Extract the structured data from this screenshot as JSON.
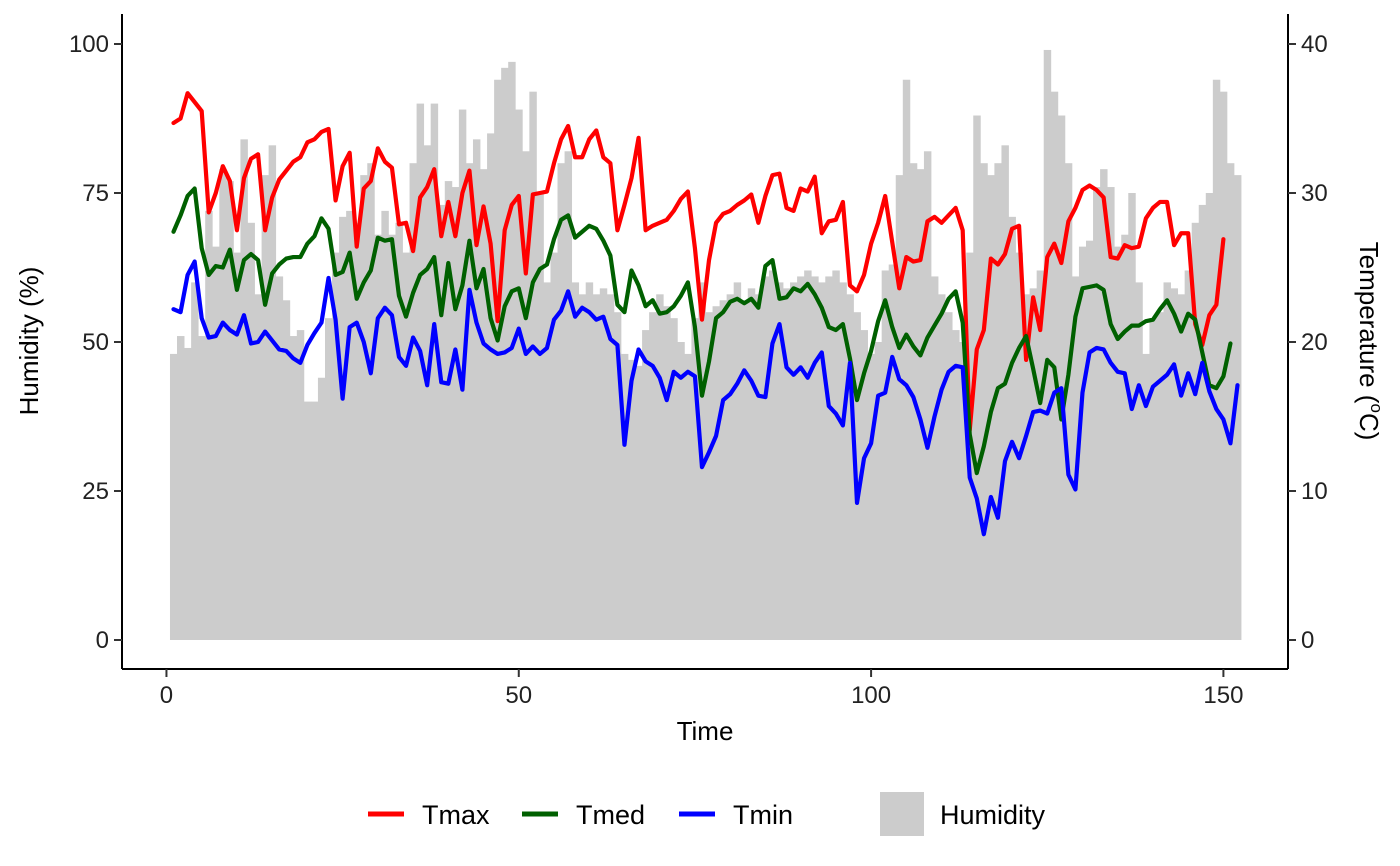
{
  "chart_data": {
    "type": "bar+line",
    "xlabel": "Time",
    "ylabel_left": "Humidity (%)",
    "ylabel_right_main": "Temperature (",
    "ylabel_right_sup": "o",
    "ylabel_right_unit": "C)",
    "xlim": [
      1,
      152
    ],
    "x_ticks": [
      0,
      50,
      100,
      150
    ],
    "x_tick_labels": [
      "0",
      "50",
      "100",
      "150"
    ],
    "ylim_left": [
      0,
      100
    ],
    "y_left_ticks": [
      0,
      25,
      50,
      75,
      100
    ],
    "y_left_tick_labels": [
      "0",
      "25",
      "50",
      "75",
      "100"
    ],
    "ylim_right": [
      0,
      40
    ],
    "y_right_ticks": [
      0,
      10,
      20,
      30,
      40
    ],
    "y_right_tick_labels": [
      "0",
      "10",
      "20",
      "30",
      "40"
    ],
    "grid": false,
    "legend_position": "bottom",
    "humidity": {
      "name": "Humidity",
      "color": "#cccccc",
      "values": [
        48,
        51,
        49,
        60,
        51,
        72,
        66,
        79,
        77,
        65,
        84,
        70,
        58,
        78,
        83,
        61,
        57,
        51,
        52,
        40,
        40,
        44,
        54,
        65,
        71,
        72,
        70,
        78,
        80,
        68,
        72,
        68,
        70,
        65,
        80,
        90,
        83,
        90,
        73,
        77,
        76,
        89,
        80,
        84,
        79,
        85,
        94,
        96,
        97,
        89,
        82,
        92,
        75,
        60,
        65,
        80,
        82,
        60,
        58,
        60,
        58,
        59,
        58,
        55,
        48,
        47,
        46,
        52,
        55,
        58,
        56,
        54,
        50,
        48,
        54,
        60,
        55,
        56,
        57,
        58,
        60,
        57,
        59,
        58,
        61,
        62,
        60,
        59,
        60,
        61,
        62,
        61,
        60,
        61,
        62,
        60,
        58,
        55,
        52,
        48,
        50,
        62,
        63,
        78,
        94,
        80,
        79,
        82,
        61,
        58,
        55,
        52,
        50,
        65,
        88,
        80,
        78,
        80,
        83,
        71,
        65,
        58,
        59,
        62,
        99,
        92,
        88,
        80,
        61,
        66,
        67,
        76,
        79,
        76,
        66,
        68,
        75,
        60,
        48,
        54,
        55,
        60,
        59,
        58,
        62,
        70,
        73,
        75,
        94,
        92,
        80,
        78
      ]
    },
    "series": [
      {
        "name": "Tmax",
        "color": "#ff0000",
        "values": [
          34.7,
          35,
          36.7,
          36.1,
          35.5,
          28.7,
          30,
          31.8,
          30.8,
          27.5,
          31,
          32.3,
          32.6,
          27.5,
          29.7,
          30.9,
          31.5,
          32.1,
          32.4,
          33.4,
          33.6,
          34.1,
          34.3,
          29.5,
          31.8,
          32.7,
          26.4,
          30.3,
          30.8,
          33,
          32.1,
          31.7,
          27.9,
          28,
          26.1,
          29.7,
          30.4,
          31.6,
          27.1,
          29.4,
          27.1,
          30,
          31.5,
          26.5,
          29.1,
          26.6,
          21.4,
          27.5,
          29.2,
          29.8,
          24.6,
          29.9,
          30,
          30.1,
          32,
          33.6,
          34.5,
          32.4,
          32.4,
          33.6,
          34.2,
          32.4,
          32,
          27.5,
          29.2,
          31,
          33.7,
          27.5,
          27.8,
          28,
          28.2,
          28.8,
          29.6,
          30.1,
          26.3,
          21.5,
          25.5,
          28,
          28.6,
          28.8,
          29.2,
          29.5,
          29.9,
          28,
          29.8,
          31.2,
          31.3,
          29,
          28.8,
          30.3,
          30.1,
          31.1,
          27.3,
          28.1,
          28.2,
          29.4,
          23.8,
          23.4,
          24.5,
          26.6,
          28,
          29.8,
          26.7,
          23.6,
          25.7,
          25.4,
          25.5,
          28.1,
          28.4,
          28,
          28.5,
          29,
          27.5,
          14.1,
          19.5,
          20.8,
          25.6,
          25.2,
          25.9,
          27.6,
          27.8,
          18.8,
          23,
          20.8,
          25.7,
          26.6,
          25.3,
          28.1,
          29,
          30.2,
          30.5,
          30.2,
          29.7,
          25.7,
          25.6,
          26.5,
          26.3,
          26.4,
          28.3,
          29,
          29.4,
          29.4,
          26.5,
          27.3,
          27.3,
          21.2,
          19.8,
          21.8,
          22.5,
          26.9
        ]
      },
      {
        "name": "Tmed",
        "color": "#006000",
        "values": [
          27.4,
          28.5,
          29.8,
          30.3,
          26.3,
          24.5,
          25.1,
          25,
          26.2,
          23.5,
          25.5,
          25.9,
          25.5,
          22.5,
          24.6,
          25.2,
          25.6,
          25.7,
          25.7,
          26.6,
          27.1,
          28.3,
          27.6,
          24.5,
          24.7,
          26,
          22.9,
          24,
          24.8,
          27,
          26.8,
          26.9,
          23.1,
          21.7,
          23.3,
          24.5,
          24.9,
          25.7,
          21.8,
          25.3,
          22.2,
          23.8,
          26.8,
          23.6,
          24.9,
          21.6,
          20.1,
          22.4,
          23.4,
          23.6,
          21.6,
          24,
          24.9,
          25.2,
          26.9,
          28.2,
          28.5,
          27,
          27.4,
          27.8,
          27.6,
          26.8,
          25.8,
          22.5,
          22,
          24.8,
          23.8,
          22.4,
          22.8,
          21.9,
          22,
          22.4,
          23.1,
          24,
          21,
          16.4,
          18.7,
          21.6,
          22,
          22.7,
          22.9,
          22.6,
          22.9,
          22.3,
          25.1,
          25.5,
          22.9,
          23,
          23.6,
          23.4,
          23.9,
          23.2,
          22.3,
          21,
          20.8,
          21.2,
          18.9,
          16.1,
          17.9,
          19.4,
          21.4,
          22.8,
          21,
          19.6,
          20.5,
          19.7,
          19.1,
          20.3,
          21.1,
          21.9,
          22.9,
          23.4,
          21.3,
          13.8,
          11.2,
          13,
          15.3,
          16.9,
          17.2,
          18.6,
          19.6,
          20.4,
          18.2,
          15.9,
          18.8,
          18.3,
          14.8,
          17.8,
          21.7,
          23.6,
          23.7,
          23.8,
          23.5,
          21.2,
          20.2,
          20.7,
          21.1,
          21.1,
          21.4,
          21.5,
          22.2,
          22.8,
          21.9,
          20.7,
          21.9,
          21.5,
          19.3,
          17.1,
          16.9,
          17.7,
          19.9
        ]
      },
      {
        "name": "Tmin",
        "color": "#0000ff",
        "values": [
          22.2,
          22,
          24.5,
          25.4,
          21.6,
          20.3,
          20.4,
          21.3,
          20.8,
          20.5,
          21.8,
          19.9,
          20,
          20.7,
          20.1,
          19.5,
          19.4,
          18.9,
          18.6,
          19.8,
          20.6,
          21.3,
          24.3,
          21.5,
          16.2,
          21,
          21.3,
          20,
          17.9,
          21.6,
          22.3,
          21.8,
          19,
          18.4,
          20.3,
          19.4,
          17.1,
          21.2,
          17.3,
          17.2,
          19.5,
          16.8,
          23.5,
          21.3,
          19.9,
          19.5,
          19.2,
          19.3,
          19.6,
          20.9,
          19.2,
          19.7,
          19.2,
          19.6,
          21.5,
          22.1,
          23.4,
          21.7,
          22.3,
          22,
          21.5,
          21.7,
          20.2,
          19.8,
          13.1,
          17.4,
          19.5,
          18.7,
          18.4,
          17.6,
          16.1,
          18,
          17.6,
          18,
          17.7,
          11.6,
          12.6,
          13.7,
          16.1,
          16.5,
          17.2,
          18.1,
          17.4,
          16.4,
          16.3,
          19.9,
          21.2,
          18.3,
          17.8,
          18.3,
          17.6,
          18.6,
          19.3,
          15.7,
          15.2,
          14.4,
          18.6,
          9.2,
          12.2,
          13.2,
          16.4,
          16.6,
          19,
          17.5,
          17.1,
          16.3,
          14.8,
          12.9,
          15,
          16.8,
          18,
          18.4,
          18.3,
          10.9,
          9.5,
          7.1,
          9.6,
          8.2,
          12,
          13.3,
          12.2,
          13.7,
          15.3,
          15.4,
          15.2,
          16.6,
          16.9,
          11.1,
          10.1,
          16.6,
          19.3,
          19.6,
          19.5,
          18.6,
          18,
          17.9,
          15.5,
          17.1,
          15.7,
          17,
          17.4,
          17.8,
          18.5,
          16.4,
          17.9,
          16.5,
          18.6,
          16.7,
          15.5,
          14.8,
          13.2,
          17.1
        ]
      }
    ],
    "legend": [
      {
        "label": "Tmax",
        "kind": "line",
        "color": "#ff0000"
      },
      {
        "label": "Tmed",
        "kind": "line",
        "color": "#006000"
      },
      {
        "label": "Tmin",
        "kind": "line",
        "color": "#0000ff"
      },
      {
        "label": "Humidity",
        "kind": "bar",
        "color": "#cccccc"
      }
    ]
  }
}
